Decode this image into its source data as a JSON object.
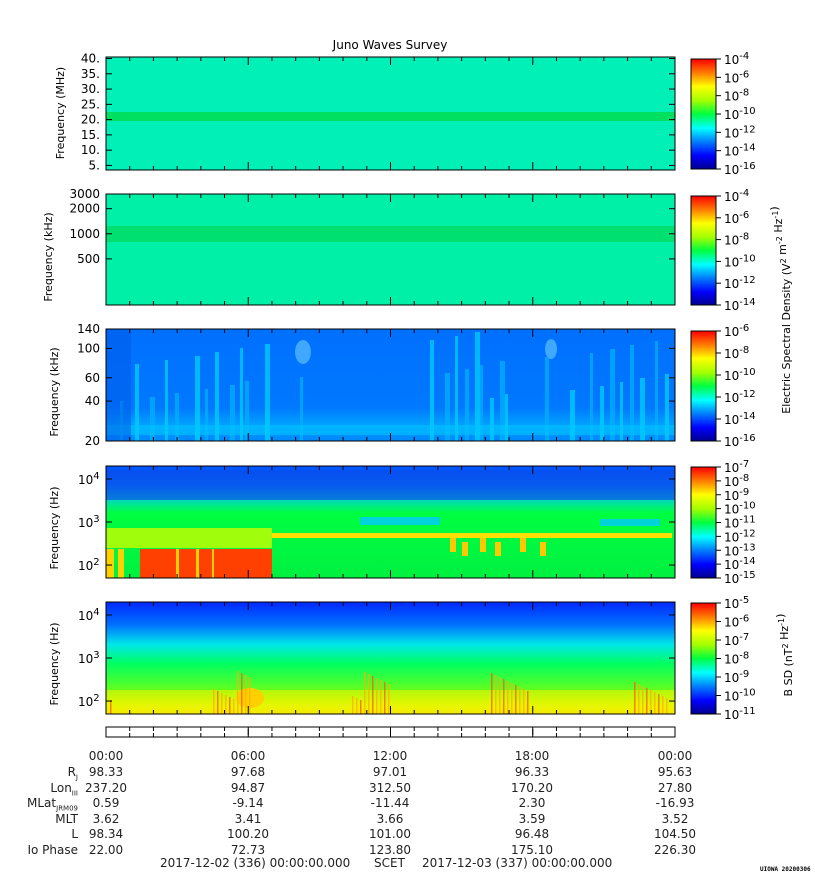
{
  "chart_data": {
    "type": "heatmap",
    "title": "Juno Waves Survey",
    "panels": [
      {
        "ylabel": "Frequency (MHz)",
        "y_scale": "linear",
        "ylim": [
          3.5,
          40.5
        ],
        "yticks": [
          5,
          10,
          15,
          20,
          25,
          30,
          35,
          40
        ],
        "ytick_labels": [
          "5.",
          "10.",
          "15.",
          "20.",
          "25.",
          "30.",
          "35.",
          "40."
        ],
        "colorbar": {
          "labels": [
            {
              "base": "10",
              "exp": "-4"
            },
            {
              "base": "10",
              "exp": "-6"
            },
            {
              "base": "10",
              "exp": "-8"
            },
            {
              "base": "10",
              "exp": "-10"
            },
            {
              "base": "10",
              "exp": "-12"
            },
            {
              "base": "10",
              "exp": "-14"
            },
            {
              "base": "10",
              "exp": "-16"
            }
          ]
        }
      },
      {
        "ylabel": "Frequency (kHz)",
        "y_scale": "log",
        "ylim": [
          140,
          3000
        ],
        "yticks": [
          3000,
          2000,
          1000,
          500
        ],
        "ytick_labels": [
          "3000",
          "2000",
          "1000",
          "500"
        ],
        "colorbar": {
          "labels": [
            {
              "base": "10",
              "exp": "-4"
            },
            {
              "base": "10",
              "exp": "-6"
            },
            {
              "base": "10",
              "exp": "-8"
            },
            {
              "base": "10",
              "exp": "-10"
            },
            {
              "base": "10",
              "exp": "-12"
            },
            {
              "base": "10",
              "exp": "-14"
            }
          ]
        }
      },
      {
        "ylabel": "Frequency (kHz)",
        "y_scale": "log",
        "ylim": [
          20,
          140
        ],
        "yticks": [
          140,
          100,
          60,
          40,
          20
        ],
        "ytick_labels": [
          "140",
          "100",
          "60",
          "40",
          "20"
        ],
        "colorbar": {
          "labels": [
            {
              "base": "10",
              "exp": "-6"
            },
            {
              "base": "10",
              "exp": "-8"
            },
            {
              "base": "10",
              "exp": "-10"
            },
            {
              "base": "10",
              "exp": "-12"
            },
            {
              "base": "10",
              "exp": "-14"
            },
            {
              "base": "10",
              "exp": "-16"
            }
          ]
        }
      },
      {
        "ylabel": "Frequency (Hz)",
        "y_scale": "log",
        "ylim": [
          50,
          20000
        ],
        "yticks": [
          10000,
          1000,
          100
        ],
        "ytick_labels": [
          {
            "base": "10",
            "exp": "4"
          },
          {
            "base": "10",
            "exp": "3"
          },
          {
            "base": "10",
            "exp": "2"
          }
        ],
        "colorbar": {
          "labels": [
            {
              "base": "10",
              "exp": "-7"
            },
            {
              "base": "10",
              "exp": "-8"
            },
            {
              "base": "10",
              "exp": "-9"
            },
            {
              "base": "10",
              "exp": "-10"
            },
            {
              "base": "10",
              "exp": "-11"
            },
            {
              "base": "10",
              "exp": "-12"
            },
            {
              "base": "10",
              "exp": "-13"
            },
            {
              "base": "10",
              "exp": "-14"
            },
            {
              "base": "10",
              "exp": "-15"
            }
          ]
        }
      },
      {
        "ylabel": "Frequency (Hz)",
        "y_scale": "log",
        "ylim": [
          50,
          20000
        ],
        "yticks": [
          10000,
          1000,
          100
        ],
        "ytick_labels": [
          {
            "base": "10",
            "exp": "4"
          },
          {
            "base": "10",
            "exp": "3"
          },
          {
            "base": "10",
            "exp": "2"
          }
        ],
        "colorbar": {
          "labels": [
            {
              "base": "10",
              "exp": "-5"
            },
            {
              "base": "10",
              "exp": "-6"
            },
            {
              "base": "10",
              "exp": "-7"
            },
            {
              "base": "10",
              "exp": "-8"
            },
            {
              "base": "10",
              "exp": "-9"
            },
            {
              "base": "10",
              "exp": "-10"
            },
            {
              "base": "10",
              "exp": "-11"
            }
          ]
        }
      }
    ],
    "electric_colorbar_label": "Electric Spectral Density (V² m⁻² Hz⁻¹)",
    "magnetic_colorbar_label": "B SD (nT² Hz⁻¹)",
    "x_tick_labels": [
      "00:00",
      "06:00",
      "12:00",
      "18:00",
      "00:00"
    ],
    "ephemeris": {
      "rows": [
        {
          "label": "R",
          "sub": "J",
          "values": [
            "98.33",
            "97.68",
            "97.01",
            "96.33",
            "95.63"
          ]
        },
        {
          "label": "Lon",
          "sub": "III",
          "values": [
            "237.20",
            "94.87",
            "312.50",
            "170.20",
            "27.80"
          ]
        },
        {
          "label": "MLat",
          "sub": "JRM09",
          "values": [
            "0.59",
            "-9.14",
            "-11.44",
            "2.30",
            "-16.93"
          ]
        },
        {
          "label": "MLT",
          "sub": "",
          "values": [
            "3.62",
            "3.41",
            "3.66",
            "3.59",
            "3.52"
          ]
        },
        {
          "label": "L",
          "sub": "",
          "values": [
            "98.34",
            "100.20",
            "101.00",
            "96.48",
            "104.50"
          ]
        },
        {
          "label": "Io Phase",
          "sub": "",
          "values": [
            "22.00",
            "72.73",
            "123.80",
            "175.10",
            "226.30"
          ]
        }
      ]
    },
    "footer": {
      "start": "2017-12-02 (336) 00:00:00.000",
      "frame": "SCET",
      "end": "2017-12-03 (337) 00:00:00.000"
    },
    "stamp": "UIOWA 20200306"
  }
}
